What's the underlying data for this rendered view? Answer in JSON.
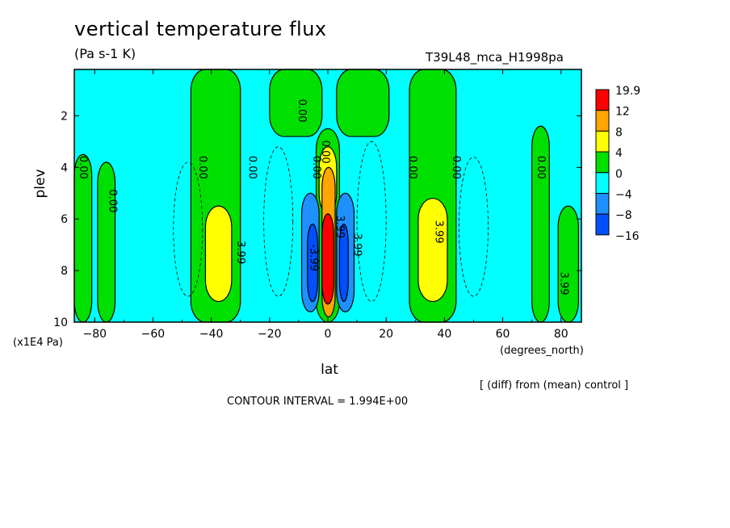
{
  "header": {
    "title": "vertical temperature flux",
    "units": "(Pa s-1 K)",
    "run_id": "T39L48_mca_H1998pa"
  },
  "footer": {
    "note": "[ (diff) from (mean) control ]",
    "interval": "CONTOUR INTERVAL = 1.994E+00"
  },
  "colors": {
    "frame": "#000000",
    "bg": "#00ffff"
  },
  "chart_data": {
    "type": "contour",
    "title": "vertical temperature flux",
    "units": "(Pa s-1 K)",
    "xlabel": "lat",
    "xunit": "(degrees_north)",
    "ylabel": "plev",
    "yunit": "(x1E4 Pa)",
    "xlim": [
      -87,
      87
    ],
    "ylim": [
      10,
      0.2
    ],
    "xticks": [
      -80,
      -60,
      -40,
      -20,
      0,
      20,
      40,
      60,
      80
    ],
    "yticks": [
      2,
      4,
      6,
      8,
      10
    ],
    "legend": {
      "position": "right",
      "levels": [
        "19.9",
        "12",
        "8",
        "4",
        "0",
        "-4",
        "-8",
        "-16"
      ],
      "colors": [
        "#ff0000",
        "#ffa500",
        "#ffff00",
        "#00e000",
        "#00ffff",
        "#1e90ff",
        "#0050ff"
      ]
    },
    "contour_labels": [
      "0.00",
      "0.00",
      "0.00",
      "0.00",
      "0.00",
      "0.00",
      "0.00",
      "0.00",
      "0.00",
      "0.00",
      "3.99",
      "3.99",
      "3.99",
      "3.99",
      "-3.99",
      "3.99"
    ],
    "fields": [
      {
        "level": "0 to 4",
        "regions": [
          {
            "name": "sh-polar-column",
            "x": [
              -87,
              -81
            ],
            "y": [
              3.5,
              10
            ]
          },
          {
            "name": "sh-polar-column-2",
            "x": [
              -79,
              -73
            ],
            "y": [
              3.8,
              10
            ]
          },
          {
            "name": "sh-midlat-band",
            "x": [
              -47,
              -30
            ],
            "y": [
              0.2,
              10
            ]
          },
          {
            "name": "top-central",
            "x": [
              -20,
              -2
            ],
            "y": [
              0.2,
              2.8
            ]
          },
          {
            "name": "eq-column",
            "x": [
              -4,
              4
            ],
            "y": [
              2.5,
              10
            ]
          },
          {
            "name": "nh-midlat-band",
            "x": [
              28,
              44
            ],
            "y": [
              0.2,
              10
            ]
          },
          {
            "name": "top-central-n",
            "x": [
              3,
              21
            ],
            "y": [
              0.2,
              2.8
            ]
          },
          {
            "name": "nh-polar",
            "x": [
              70,
              76
            ],
            "y": [
              2.4,
              10
            ]
          },
          {
            "name": "nh-polar-2",
            "x": [
              79,
              86
            ],
            "y": [
              5.5,
              10
            ]
          }
        ]
      },
      {
        "level": "4 to 8",
        "regions": [
          {
            "name": "sh-midlat-core",
            "x": [
              -42,
              -33
            ],
            "y": [
              5.5,
              9.2
            ]
          },
          {
            "name": "nh-midlat-core",
            "x": [
              31,
              41
            ],
            "y": [
              5.2,
              9.2
            ]
          },
          {
            "name": "eq-upper",
            "x": [
              -3,
              3
            ],
            "y": [
              3.2,
              5.8
            ]
          }
        ]
      },
      {
        "level": "8 to 12",
        "regions": [
          {
            "name": "eq-orange",
            "x": [
              -2,
              2.5
            ],
            "y": [
              4.0,
              9.8
            ]
          }
        ]
      },
      {
        "level": "12 to 19.9",
        "regions": [
          {
            "name": "eq-red",
            "x": [
              -2,
              2
            ],
            "y": [
              5.8,
              9.3
            ]
          }
        ]
      },
      {
        "level": "-4 to -8",
        "regions": [
          {
            "name": "sh-eq-blue",
            "x": [
              -9,
              -3
            ],
            "y": [
              5.0,
              9.6
            ]
          },
          {
            "name": "nh-eq-blue",
            "x": [
              3,
              9
            ],
            "y": [
              5.0,
              9.6
            ]
          }
        ]
      },
      {
        "level": "-8 to -16",
        "regions": [
          {
            "name": "sh-eq-dark",
            "x": [
              -7,
              -3.5
            ],
            "y": [
              6.2,
              9.2
            ]
          },
          {
            "name": "nh-eq-dark",
            "x": [
              4,
              7
            ],
            "y": [
              6.2,
              9.2
            ]
          }
        ]
      }
    ]
  }
}
